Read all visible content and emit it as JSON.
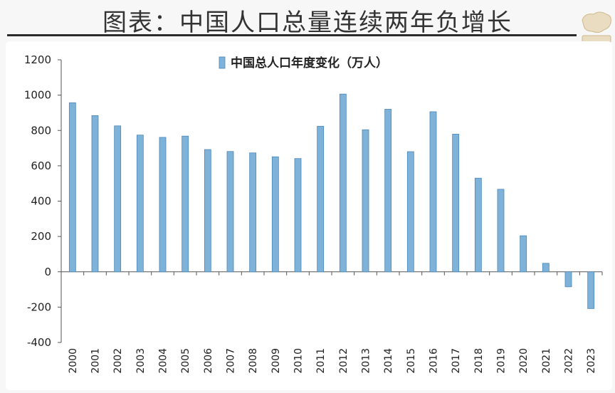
{
  "page": {
    "title": "图表：中国人口总量连续两年负增长"
  },
  "colors": {
    "bar_fill": "#7fb2d8",
    "bar_edge": "#4a87b8",
    "axis": "#555555",
    "title_rule": "#2b2b2b"
  },
  "logo": {
    "icon": "map-watermark-icon"
  },
  "chart_data": {
    "type": "bar",
    "categories": [
      "2000",
      "2001",
      "2002",
      "2003",
      "2004",
      "2005",
      "2006",
      "2007",
      "2008",
      "2009",
      "2010",
      "2011",
      "2012",
      "2013",
      "2014",
      "2015",
      "2016",
      "2017",
      "2018",
      "2019",
      "2020",
      "2021",
      "2022",
      "2023"
    ],
    "series": [
      {
        "name": "中国总人口年度变化（万人）",
        "values": [
          957,
          884,
          826,
          774,
          761,
          768,
          692,
          681,
          673,
          651,
          641,
          824,
          1006,
          804,
          920,
          680,
          906,
          779,
          530,
          467,
          204,
          48,
          -85,
          -208
        ]
      }
    ],
    "ylim": [
      -400,
      1200
    ],
    "yticks": [
      -400,
      -200,
      0,
      200,
      400,
      600,
      800,
      1000,
      1200
    ],
    "xlabel": "",
    "ylabel": "",
    "grid": false,
    "legend_position": "top-center"
  }
}
